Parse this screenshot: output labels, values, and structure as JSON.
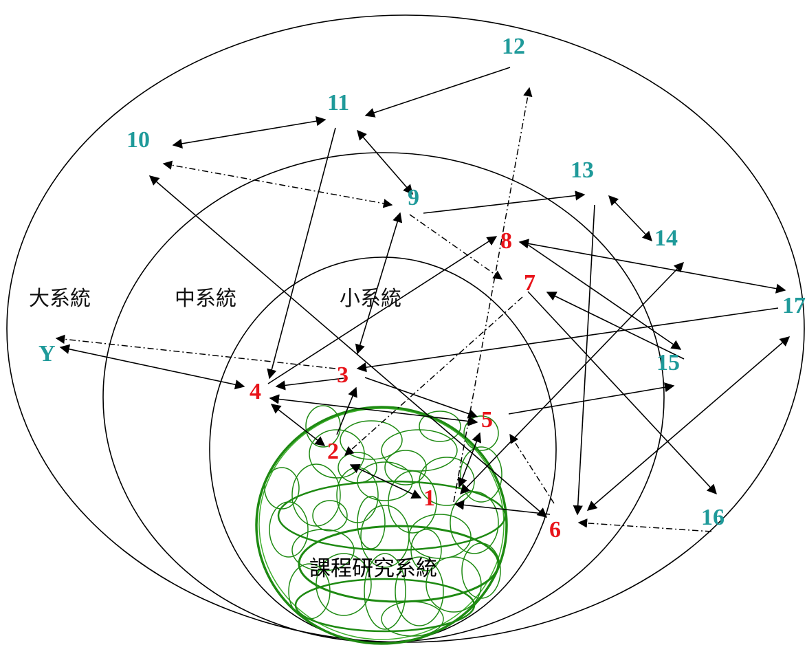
{
  "systems": {
    "large": "大系統",
    "medium": "中系統",
    "small": "小系統",
    "core": "課程研究系統"
  },
  "nodes": {
    "n1": "1",
    "n2": "2",
    "n3": "3",
    "n4": "4",
    "n5": "5",
    "n6": "6",
    "n7": "7",
    "n8": "8",
    "n9": "9",
    "n10": "10",
    "n11": "11",
    "n12": "12",
    "n13": "13",
    "n14": "14",
    "n15": "15",
    "n16": "16",
    "n17": "17",
    "nY": "Y"
  },
  "colors": {
    "inner_nodes": "#e8141a",
    "outer_nodes": "#1f9a9a",
    "core_rings": "#1e8a12",
    "lines": "#000000"
  }
}
